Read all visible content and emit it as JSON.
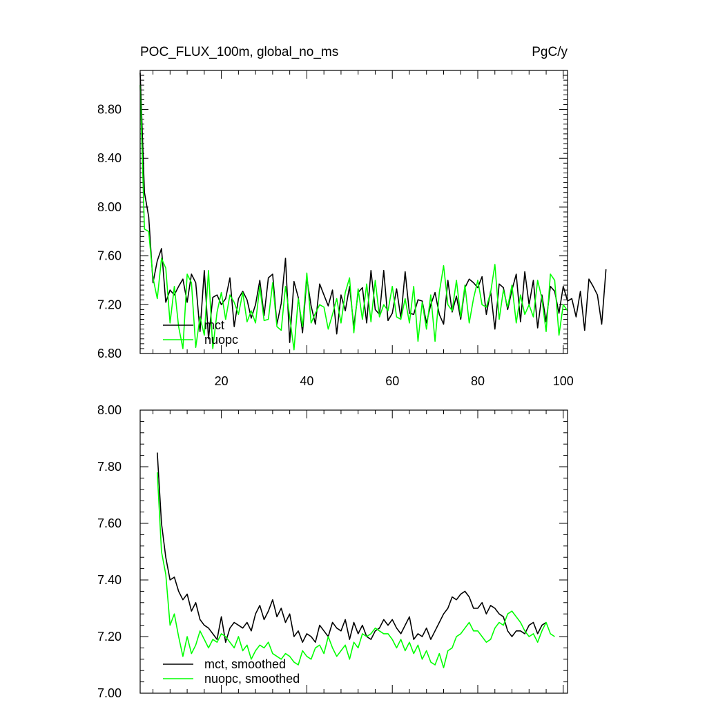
{
  "chart_data": [
    {
      "type": "line",
      "title": "POC_FLUX_100m, global_no_ms",
      "units": "PgC/y",
      "xlim": [
        1,
        101
      ],
      "ylim": [
        6.8,
        9.12
      ],
      "xticks": [
        20,
        40,
        60,
        80,
        100
      ],
      "yticks": [
        6.8,
        7.2,
        7.6,
        8.0,
        8.4,
        8.8
      ],
      "ytick_labels": [
        "6.80",
        "7.20",
        "7.60",
        "8.00",
        "8.40",
        "8.80"
      ],
      "xtick_labels": [
        "20",
        "40",
        "60",
        "80",
        "100"
      ],
      "legend_location": "bottom-left",
      "series": [
        {
          "name": "mct",
          "color": "#000000",
          "x_start": 1,
          "values": [
            9.1,
            8.12,
            7.92,
            7.38,
            7.56,
            7.66,
            7.22,
            7.32,
            7.28,
            7.35,
            7.41,
            7.22,
            7.45,
            7.38,
            6.98,
            7.48,
            6.92,
            7.26,
            7.28,
            7.2,
            7.25,
            7.42,
            7.02,
            7.25,
            7.31,
            7.24,
            7.09,
            7.2,
            7.4,
            7.11,
            7.42,
            7.45,
            7.04,
            7.21,
            7.58,
            6.89,
            7.39,
            7.26,
            6.97,
            7.42,
            7.19,
            7.04,
            7.37,
            7.28,
            7.19,
            7.32,
            6.96,
            7.28,
            7.15,
            7.35,
            7.02,
            7.3,
            7.34,
            7.05,
            7.48,
            7.16,
            7.12,
            7.48,
            7.07,
            7.13,
            7.33,
            7.09,
            7.47,
            7.13,
            7.12,
            7.24,
            7.23,
            7.05,
            7.2,
            7.3,
            7.12,
            7.04,
            7.4,
            7.14,
            7.27,
            7.08,
            7.34,
            7.41,
            7.38,
            7.34,
            7.43,
            7.12,
            7.31,
            7.0,
            7.37,
            7.34,
            7.16,
            7.32,
            7.45,
            7.06,
            7.47,
            7.2,
            7.4,
            7.01,
            7.28,
            7.06,
            7.35,
            7.31,
            7.13,
            7.35,
            7.23,
            7.25,
            7.1,
            7.31,
            6.99,
            7.41,
            7.35,
            7.28,
            7.04,
            7.49
          ]
        },
        {
          "name": "nuopc",
          "color": "#00ff00",
          "x_start": 1,
          "values": [
            9.0,
            7.82,
            7.8,
            7.42,
            7.25,
            7.58,
            7.5,
            7.05,
            7.35,
            7.02,
            6.84,
            7.45,
            7.38,
            6.85,
            7.1,
            6.95,
            7.48,
            6.84,
            7.14,
            7.3,
            7.08,
            7.28,
            7.22,
            7.12,
            7.3,
            7.06,
            7.15,
            7.05,
            7.35,
            7.07,
            7.08,
            7.38,
            7.02,
            6.99,
            7.35,
            7.1,
            6.83,
            7.25,
            7.02,
            7.46,
            7.05,
            7.13,
            7.2,
            7.18,
            7.0,
            7.12,
            7.25,
            7.05,
            7.3,
            7.42,
            6.97,
            7.33,
            7.08,
            7.37,
            7.06,
            7.4,
            7.1,
            7.2,
            7.15,
            7.35,
            7.1,
            7.08,
            7.25,
            7.05,
            7.35,
            6.9,
            7.22,
            7.0,
            7.28,
            6.9,
            7.3,
            7.52,
            7.2,
            7.15,
            7.4,
            7.1,
            7.36,
            7.05,
            7.25,
            7.4,
            7.2,
            7.18,
            7.3,
            7.53,
            7.08,
            7.32,
            7.18,
            7.36,
            7.05,
            7.28,
            7.12,
            7.2,
            7.1,
            7.4,
            7.25,
            6.98,
            7.45,
            7.4,
            6.95,
            7.2,
            7.15
          ]
        }
      ]
    },
    {
      "type": "line",
      "xlim": [
        1,
        101
      ],
      "ylim": [
        7.0,
        8.0
      ],
      "xticks": [
        20,
        40,
        60,
        80,
        100
      ],
      "yticks": [
        7.0,
        7.2,
        7.4,
        7.6,
        7.8,
        8.0
      ],
      "ytick_labels": [
        "7.00",
        "7.20",
        "7.40",
        "7.60",
        "7.80",
        "8.00"
      ],
      "legend_location": "bottom-left",
      "series": [
        {
          "name": "mct, smoothed",
          "color": "#000000",
          "x_start": 5,
          "values": [
            7.85,
            7.6,
            7.48,
            7.4,
            7.41,
            7.36,
            7.33,
            7.35,
            7.29,
            7.32,
            7.26,
            7.24,
            7.23,
            7.21,
            7.19,
            7.27,
            7.18,
            7.23,
            7.25,
            7.24,
            7.23,
            7.25,
            7.22,
            7.28,
            7.31,
            7.26,
            7.29,
            7.33,
            7.27,
            7.3,
            7.25,
            7.28,
            7.2,
            7.22,
            7.18,
            7.21,
            7.2,
            7.18,
            7.24,
            7.22,
            7.2,
            7.25,
            7.23,
            7.22,
            7.26,
            7.19,
            7.25,
            7.21,
            7.24,
            7.2,
            7.19,
            7.22,
            7.23,
            7.26,
            7.24,
            7.26,
            7.23,
            7.21,
            7.24,
            7.27,
            7.19,
            7.21,
            7.2,
            7.23,
            7.19,
            7.22,
            7.25,
            7.28,
            7.3,
            7.34,
            7.33,
            7.35,
            7.36,
            7.34,
            7.3,
            7.3,
            7.32,
            7.28,
            7.31,
            7.3,
            7.28,
            7.27,
            7.22,
            7.2,
            7.22,
            7.22,
            7.21,
            7.24,
            7.25,
            7.21,
            7.24,
            7.25
          ]
        },
        {
          "name": "nuopc, smoothed",
          "color": "#00ff00",
          "x_start": 5,
          "values": [
            7.78,
            7.5,
            7.42,
            7.24,
            7.28,
            7.2,
            7.13,
            7.2,
            7.14,
            7.17,
            7.22,
            7.19,
            7.16,
            7.19,
            7.18,
            7.21,
            7.2,
            7.18,
            7.16,
            7.2,
            7.15,
            7.17,
            7.12,
            7.15,
            7.17,
            7.16,
            7.18,
            7.14,
            7.13,
            7.12,
            7.14,
            7.13,
            7.11,
            7.1,
            7.15,
            7.13,
            7.12,
            7.16,
            7.17,
            7.14,
            7.2,
            7.16,
            7.13,
            7.15,
            7.17,
            7.12,
            7.18,
            7.16,
            7.21,
            7.2,
            7.21,
            7.23,
            7.22,
            7.21,
            7.21,
            7.19,
            7.16,
            7.19,
            7.15,
            7.18,
            7.14,
            7.17,
            7.12,
            7.15,
            7.11,
            7.1,
            7.14,
            7.09,
            7.15,
            7.16,
            7.2,
            7.21,
            7.23,
            7.25,
            7.22,
            7.22,
            7.2,
            7.18,
            7.19,
            7.23,
            7.25,
            7.24,
            7.28,
            7.29,
            7.27,
            7.25,
            7.22,
            7.2,
            7.21,
            7.18,
            7.22,
            7.25,
            7.21,
            7.2
          ]
        }
      ]
    }
  ]
}
